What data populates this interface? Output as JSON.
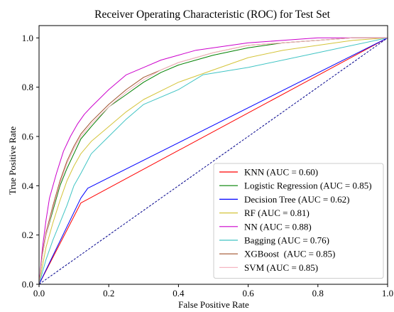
{
  "chart_data": {
    "type": "line",
    "title": "Receiver Operating Characteristic (ROC) for Test Set",
    "xlabel": "False Positive Rate",
    "ylabel": "True Positive Rate",
    "xlim": [
      0.0,
      1.0
    ],
    "ylim": [
      0.0,
      1.05
    ],
    "xticks": [
      "0.0",
      "0.2",
      "0.4",
      "0.6",
      "0.8",
      "1.0"
    ],
    "yticks": [
      "0.0",
      "0.2",
      "0.4",
      "0.6",
      "0.8",
      "1.0"
    ],
    "grid": false,
    "legend_position": "lower-right",
    "diagonal": {
      "x": [
        0,
        1
      ],
      "y": [
        0,
        1
      ],
      "color": "#00008b",
      "style": "dashed"
    },
    "series": [
      {
        "name": "KNN (AUC = 0.60)",
        "color": "#ff0000",
        "x": [
          0,
          0.12,
          1.0
        ],
        "y": [
          0,
          0.33,
          1.0
        ]
      },
      {
        "name": "Logistic Regression (AUC = 0.85)",
        "color": "#008000",
        "x": [
          0,
          0.01,
          0.02,
          0.04,
          0.06,
          0.08,
          0.1,
          0.12,
          0.15,
          0.2,
          0.25,
          0.3,
          0.35,
          0.4,
          0.45,
          0.5,
          0.6,
          0.7,
          0.8,
          0.9,
          1.0
        ],
        "y": [
          0,
          0.12,
          0.2,
          0.3,
          0.4,
          0.47,
          0.53,
          0.59,
          0.64,
          0.72,
          0.77,
          0.82,
          0.86,
          0.89,
          0.91,
          0.93,
          0.96,
          0.98,
          0.99,
          1.0,
          1.0
        ]
      },
      {
        "name": "Decision Tree (AUC = 0.62)",
        "color": "#0000ff",
        "x": [
          0,
          0.12,
          0.14,
          1.0
        ],
        "y": [
          0,
          0.35,
          0.39,
          1.0
        ]
      },
      {
        "name": "RF (AUC = 0.81)",
        "color": "#d4c43a",
        "x": [
          0,
          0.02,
          0.04,
          0.06,
          0.08,
          0.1,
          0.12,
          0.15,
          0.2,
          0.25,
          0.3,
          0.4,
          0.5,
          0.6,
          0.7,
          0.8,
          0.9,
          1.0
        ],
        "y": [
          0,
          0.15,
          0.25,
          0.34,
          0.42,
          0.48,
          0.53,
          0.58,
          0.64,
          0.7,
          0.75,
          0.82,
          0.87,
          0.92,
          0.95,
          0.97,
          0.99,
          1.0
        ]
      },
      {
        "name": "NN (AUC = 0.88)",
        "color": "#cc00cc",
        "x": [
          0,
          0.01,
          0.02,
          0.03,
          0.05,
          0.07,
          0.09,
          0.11,
          0.13,
          0.15,
          0.2,
          0.25,
          0.3,
          0.35,
          0.4,
          0.45,
          0.5,
          0.55,
          0.6,
          0.7,
          0.8,
          1.0
        ],
        "y": [
          0,
          0.15,
          0.26,
          0.35,
          0.45,
          0.54,
          0.6,
          0.65,
          0.69,
          0.72,
          0.79,
          0.85,
          0.88,
          0.91,
          0.93,
          0.95,
          0.96,
          0.97,
          0.98,
          0.99,
          1.0,
          1.0
        ]
      },
      {
        "name": "Bagging (AUC = 0.76)",
        "color": "#40c4c4",
        "x": [
          0,
          0.02,
          0.04,
          0.06,
          0.08,
          0.1,
          0.12,
          0.15,
          0.2,
          0.25,
          0.3,
          0.4,
          0.47,
          0.6,
          0.8,
          1.0
        ],
        "y": [
          0,
          0.1,
          0.18,
          0.25,
          0.32,
          0.4,
          0.45,
          0.53,
          0.6,
          0.67,
          0.73,
          0.79,
          0.85,
          0.88,
          0.94,
          1.0
        ]
      },
      {
        "name": "XGBoost  (AUC = 0.85)",
        "color": "#a0522d",
        "x": [
          0,
          0.01,
          0.02,
          0.04,
          0.06,
          0.08,
          0.1,
          0.12,
          0.15,
          0.2,
          0.25,
          0.3,
          0.35,
          0.4,
          0.45,
          0.5,
          0.6,
          0.7,
          0.8,
          0.9,
          1.0
        ],
        "y": [
          0,
          0.13,
          0.21,
          0.32,
          0.42,
          0.5,
          0.56,
          0.61,
          0.66,
          0.73,
          0.79,
          0.84,
          0.87,
          0.9,
          0.92,
          0.94,
          0.97,
          0.98,
          0.99,
          1.0,
          1.0
        ]
      },
      {
        "name": "SVM (AUC = 0.85)",
        "color": "#f4b6c2",
        "x": [
          0,
          0.01,
          0.02,
          0.04,
          0.06,
          0.08,
          0.1,
          0.12,
          0.15,
          0.2,
          0.25,
          0.3,
          0.35,
          0.4,
          0.45,
          0.5,
          0.6,
          0.7,
          0.8,
          0.9,
          1.0
        ],
        "y": [
          0,
          0.12,
          0.2,
          0.31,
          0.41,
          0.49,
          0.55,
          0.6,
          0.65,
          0.72,
          0.78,
          0.83,
          0.87,
          0.9,
          0.92,
          0.94,
          0.97,
          0.98,
          0.99,
          1.0,
          1.0
        ]
      }
    ]
  }
}
